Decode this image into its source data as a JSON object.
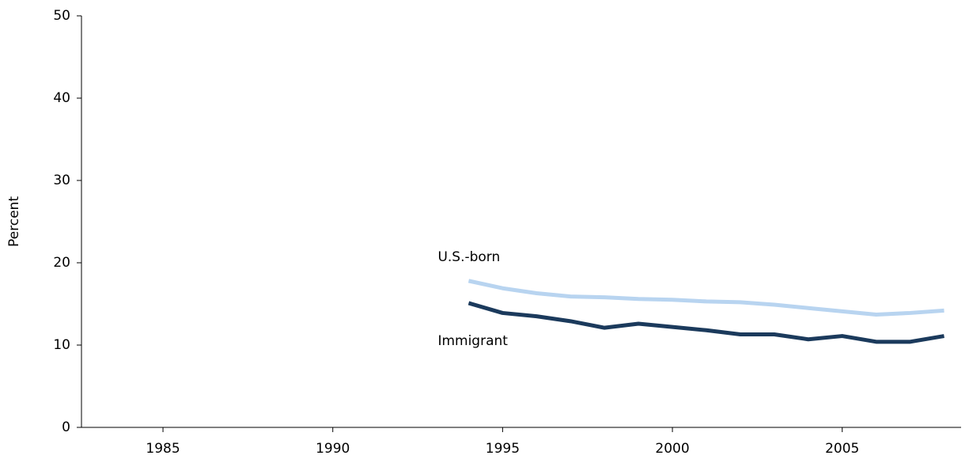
{
  "chart_data": {
    "type": "line",
    "y_label": "Percent",
    "x": [
      1994,
      1995,
      1996,
      1997,
      1998,
      1999,
      2000,
      2001,
      2002,
      2003,
      2004,
      2005,
      2006,
      2007,
      2008
    ],
    "series": [
      {
        "name": "U.S.-born",
        "color": "#b8d4f0",
        "values": [
          17.8,
          16.9,
          16.3,
          15.9,
          15.8,
          15.6,
          15.5,
          15.3,
          15.2,
          14.9,
          14.5,
          14.1,
          13.7,
          13.9,
          14.2
        ]
      },
      {
        "name": "Immigrant",
        "color": "#1b3a5c",
        "values": [
          15.1,
          13.9,
          13.5,
          12.9,
          12.1,
          12.6,
          12.2,
          11.8,
          11.3,
          11.3,
          10.7,
          11.1,
          10.4,
          10.4,
          11.1
        ]
      }
    ],
    "xlim": [
      1982.6,
      2008.5
    ],
    "xticks": [
      1985,
      1990,
      1995,
      2000,
      2005
    ],
    "ylim": [
      0,
      50
    ],
    "yticks": [
      0,
      10,
      20,
      30,
      40,
      50
    ]
  }
}
